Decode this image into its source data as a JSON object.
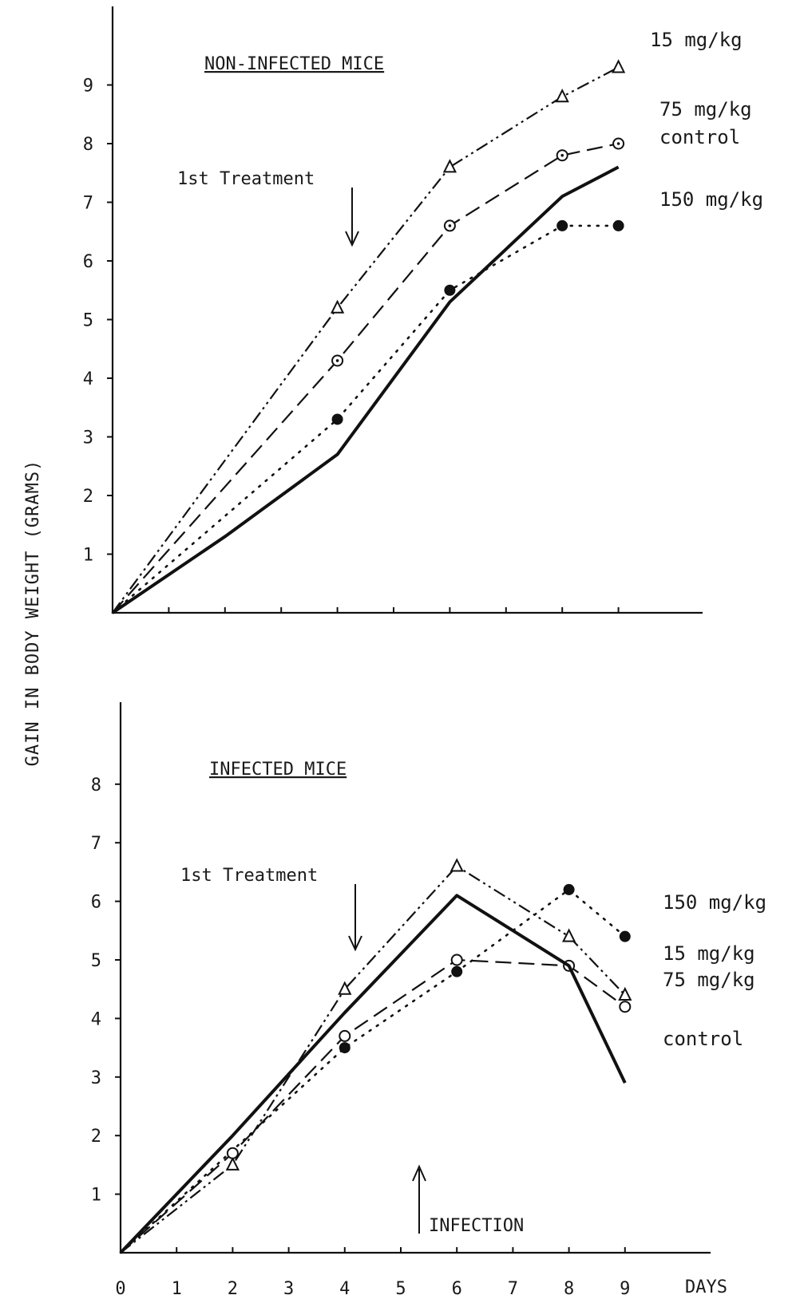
{
  "chart_data": [
    {
      "type": "line",
      "title": "NON-INFECTED MICE",
      "annotation": "1st Treatment",
      "ylabel": "GAIN IN BODY WEIGHT (GRAMS)",
      "yticks": [
        "1",
        "2",
        "3",
        "4",
        "5",
        "6",
        "7",
        "8",
        "9"
      ],
      "ylim": [
        0,
        9.5
      ],
      "xlim": [
        0,
        9.5
      ],
      "series": [
        {
          "name": "15 mg/kg",
          "style": "dashdotdot",
          "marker": "triangle",
          "x": [
            0,
            4,
            6,
            8,
            9
          ],
          "y": [
            0,
            5.2,
            7.6,
            8.8,
            9.3
          ]
        },
        {
          "name": "75 mg/kg",
          "style": "dashed",
          "marker": "circle-dot",
          "x": [
            0,
            4,
            6,
            8,
            9
          ],
          "y": [
            0,
            4.3,
            6.6,
            7.8,
            8.0
          ]
        },
        {
          "name": "control",
          "style": "solid",
          "marker": "none",
          "x": [
            0,
            2,
            4,
            6,
            8,
            9
          ],
          "y": [
            0,
            1.3,
            2.7,
            5.3,
            7.1,
            7.6
          ]
        },
        {
          "name": "150 mg/kg",
          "style": "dotted",
          "marker": "filled-circle",
          "x": [
            0,
            4,
            6,
            8,
            9
          ],
          "y": [
            0,
            3.3,
            5.5,
            6.6,
            6.6
          ]
        }
      ]
    },
    {
      "type": "line",
      "title": "INFECTED MICE",
      "annotation": "1st Treatment",
      "annotation2": "INFECTION",
      "xlabel": "DAYS",
      "xticks": [
        "0",
        "1",
        "2",
        "3",
        "4",
        "5",
        "6",
        "7",
        "8",
        "9"
      ],
      "yticks": [
        "1",
        "2",
        "3",
        "4",
        "5",
        "6",
        "7",
        "8"
      ],
      "ylim": [
        0,
        8.5
      ],
      "xlim": [
        0,
        9.5
      ],
      "series": [
        {
          "name": "150 mg/kg",
          "style": "dotted",
          "marker": "filled-circle",
          "x": [
            0,
            4,
            6,
            8,
            9
          ],
          "y": [
            0,
            3.5,
            4.8,
            6.2,
            5.4
          ]
        },
        {
          "name": "15 mg/kg",
          "style": "dashdotdot",
          "marker": "triangle",
          "x": [
            0,
            2,
            4,
            6,
            8,
            9
          ],
          "y": [
            0,
            1.5,
            4.5,
            6.6,
            5.4,
            4.4
          ]
        },
        {
          "name": "75 mg/kg",
          "style": "dashed",
          "marker": "open-circle",
          "x": [
            0,
            2,
            4,
            6,
            8,
            9
          ],
          "y": [
            0,
            1.7,
            3.7,
            5.0,
            4.9,
            4.2
          ]
        },
        {
          "name": "control",
          "style": "solid",
          "marker": "none",
          "x": [
            0,
            2,
            4,
            6,
            8,
            9
          ],
          "y": [
            0,
            2.0,
            4.1,
            6.1,
            4.9,
            2.9
          ]
        }
      ]
    }
  ]
}
